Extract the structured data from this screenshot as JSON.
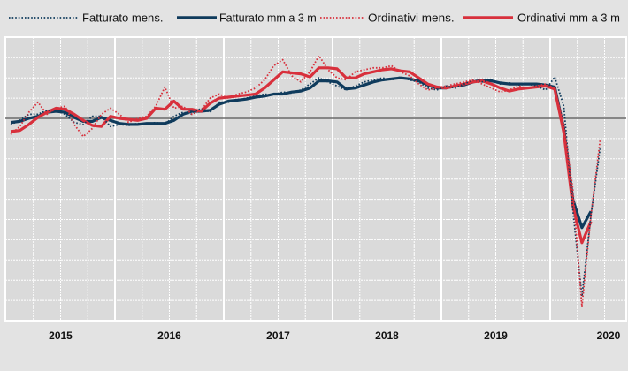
{
  "chart_data": {
    "type": "line",
    "title": "",
    "xlabel": "",
    "ylabel": "",
    "x_start": "2015-01",
    "x_frequency": "monthly",
    "x_tick_labels": [
      "2015",
      "2016",
      "2017",
      "2018",
      "2019",
      "2020"
    ],
    "ylim": [
      -10,
      4
    ],
    "y_unit": "gridline steps relative to the horizontal reference line (no y labels printed)",
    "reference_line": 0,
    "grid": true,
    "legend_position": "top",
    "series": [
      {
        "name": "Fatturato mens.",
        "style": "dotted",
        "color": "#0f3b5c",
        "values": [
          -0.3,
          -0.1,
          0.2,
          0.2,
          0.4,
          0.4,
          0.2,
          -0.2,
          -0.3,
          0.1,
          0.1,
          -0.4,
          -0.3,
          -0.35,
          -0.25,
          -0.3,
          -0.2,
          -0.3,
          0.1,
          0.3,
          0.2,
          0.5,
          0.3,
          0.8,
          0.8,
          0.9,
          1.0,
          1.1,
          1.2,
          1.15,
          1.3,
          1.25,
          1.4,
          1.7,
          2.0,
          1.8,
          1.6,
          1.4,
          1.6,
          1.8,
          1.9,
          2.0,
          1.9,
          2.05,
          1.9,
          1.8,
          1.5,
          1.4,
          1.6,
          1.5,
          1.7,
          1.9,
          1.8,
          1.9,
          1.7,
          1.75,
          1.65,
          1.7,
          1.6,
          1.4,
          2.05,
          0.6,
          -4.5,
          -8.8,
          -4.8,
          -1.5
        ]
      },
      {
        "name": "Fatturato mm a 3 m",
        "style": "solid",
        "color": "#0f3b5c",
        "values": [
          -0.2,
          -0.15,
          0,
          0.1,
          0.3,
          0.35,
          0.3,
          0.05,
          -0.15,
          -0.15,
          0.05,
          -0.1,
          -0.25,
          -0.3,
          -0.3,
          -0.25,
          -0.25,
          -0.25,
          -0.1,
          0.2,
          0.35,
          0.35,
          0.4,
          0.7,
          0.85,
          0.9,
          0.95,
          1.05,
          1.1,
          1.2,
          1.2,
          1.3,
          1.35,
          1.5,
          1.85,
          1.85,
          1.8,
          1.45,
          1.5,
          1.65,
          1.8,
          1.9,
          1.95,
          2.0,
          1.95,
          1.85,
          1.65,
          1.5,
          1.5,
          1.6,
          1.65,
          1.8,
          1.9,
          1.85,
          1.75,
          1.7,
          1.7,
          1.7,
          1.7,
          1.65,
          1.55,
          -0.5,
          -4.0,
          -5.4,
          -4.6
        ]
      },
      {
        "name": "Ordinativi mens.",
        "style": "dotted",
        "color": "#d8303c",
        "values": [
          -0.8,
          -0.4,
          0.3,
          0.8,
          0.2,
          0.5,
          0.6,
          -0.3,
          -0.9,
          -0.5,
          0.2,
          0.5,
          0.2,
          -0.2,
          0,
          0.1,
          0.6,
          1.55,
          0.5,
          0.6,
          0.2,
          0.4,
          1.0,
          1.2,
          1.0,
          1.2,
          1.3,
          1.5,
          1.9,
          2.6,
          2.9,
          2.1,
          1.8,
          2.3,
          3.1,
          2.4,
          2.0,
          1.9,
          2.3,
          2.4,
          2.5,
          2.5,
          2.6,
          2.3,
          2.1,
          1.7,
          1.4,
          1.5,
          1.6,
          1.7,
          1.8,
          1.9,
          1.7,
          1.5,
          1.3,
          1.4,
          1.6,
          1.5,
          1.6,
          1.7,
          1.5,
          -0.3,
          -3.5,
          -9.3,
          -4.8,
          -1.1
        ]
      },
      {
        "name": "Ordinativi mm a 3 m",
        "style": "solid",
        "color": "#d8303c",
        "values": [
          -0.65,
          -0.6,
          -0.3,
          0.05,
          0.3,
          0.5,
          0.45,
          0.2,
          -0.1,
          -0.35,
          -0.4,
          0.1,
          0,
          -0.05,
          -0.1,
          0,
          0.5,
          0.45,
          0.85,
          0.45,
          0.45,
          0.35,
          0.75,
          1.0,
          1.05,
          1.1,
          1.15,
          1.2,
          1.5,
          1.9,
          2.3,
          2.25,
          2.2,
          2.05,
          2.5,
          2.5,
          2.45,
          2.0,
          2.0,
          2.2,
          2.3,
          2.4,
          2.45,
          2.35,
          2.3,
          2.0,
          1.7,
          1.55,
          1.5,
          1.6,
          1.7,
          1.8,
          1.85,
          1.7,
          1.5,
          1.35,
          1.45,
          1.5,
          1.55,
          1.6,
          1.45,
          -0.7,
          -4.3,
          -6.15,
          -5.1
        ]
      }
    ]
  }
}
